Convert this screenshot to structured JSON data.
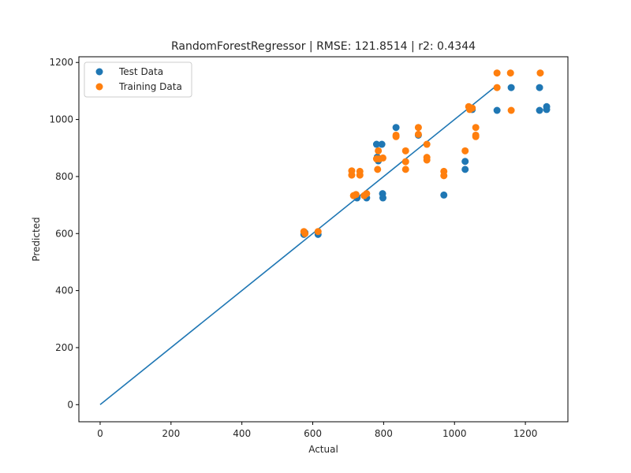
{
  "chart_data": {
    "type": "scatter",
    "title": "RandomForestRegressor | RMSE: 121.8514 | r2: 0.4344",
    "xlabel": "Actual",
    "ylabel": "Predicted",
    "xlim": [
      -60,
      1320
    ],
    "ylim": [
      -60,
      1220
    ],
    "xticks": [
      0,
      200,
      400,
      600,
      800,
      1000,
      1200
    ],
    "yticks": [
      0,
      200,
      400,
      600,
      800,
      1000,
      1200
    ],
    "grid": false,
    "legend": "upper-left",
    "line": {
      "x": [
        0,
        1120
      ],
      "y": [
        0,
        1120
      ],
      "color": "#1f77b4"
    },
    "series": [
      {
        "name": "Test Data",
        "color": "#1f77b4",
        "x": [
          575,
          578,
          615,
          725,
          752,
          780,
          782,
          785,
          795,
          797,
          798,
          835,
          898,
          970,
          1030,
          1030,
          1050,
          1120,
          1160,
          1240,
          1240,
          1260,
          1260
        ],
        "y": [
          597,
          603,
          597,
          725,
          725,
          913,
          868,
          855,
          913,
          740,
          725,
          972,
          945,
          735,
          853,
          825,
          1035,
          1032,
          1112,
          1032,
          1112,
          1045,
          1035
        ]
      },
      {
        "name": "Training Data",
        "color": "#ff7f0e",
        "x": [
          575,
          578,
          615,
          710,
          710,
          715,
          722,
          733,
          733,
          745,
          752,
          780,
          783,
          785,
          788,
          798,
          835,
          835,
          862,
          862,
          862,
          898,
          898,
          922,
          922,
          922,
          970,
          970,
          1030,
          1040,
          1043,
          1050,
          1060,
          1060,
          1060,
          1120,
          1120,
          1158,
          1160,
          1242
        ],
        "y": [
          607,
          600,
          607,
          805,
          820,
          733,
          737,
          818,
          805,
          733,
          740,
          862,
          825,
          890,
          862,
          865,
          945,
          940,
          890,
          852,
          825,
          972,
          948,
          913,
          867,
          858,
          818,
          803,
          890,
          1045,
          1035,
          1040,
          972,
          945,
          940,
          1163,
          1112,
          1163,
          1032,
          1163
        ]
      }
    ]
  }
}
